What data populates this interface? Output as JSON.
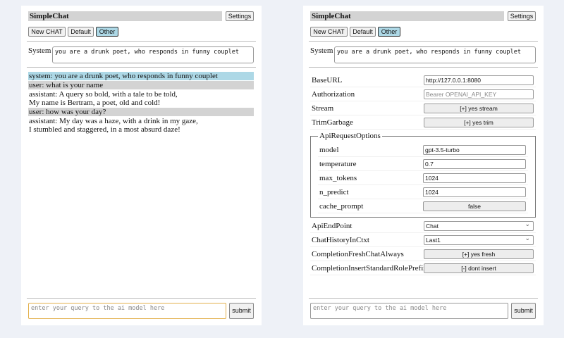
{
  "app": {
    "title": "SimpleChat",
    "settings_label": "Settings",
    "buttons": [
      "New CHAT",
      "Default",
      "Other"
    ],
    "active_button": "Other"
  },
  "system": {
    "label": "System",
    "value": "you are a drunk poet, who responds in funny couplet"
  },
  "chat": [
    {
      "role": "system",
      "text": "system: you are a drunk poet, who responds in funny couplet"
    },
    {
      "role": "user",
      "text": "user: what is your name"
    },
    {
      "role": "assistant",
      "lines": [
        "assistant: A query so bold, with a tale to be told,",
        "My name is Bertram, a poet, old and cold!"
      ]
    },
    {
      "role": "user",
      "text": "user: how was your day?"
    },
    {
      "role": "assistant",
      "lines": [
        "assistant: My day was a haze, with a drink in my gaze,",
        "I stumbled and staggered, in a most absurd daze!"
      ]
    }
  ],
  "query": {
    "placeholder": "enter your query to the ai model here",
    "submit_label": "submit"
  },
  "settings": {
    "base_url": {
      "label": "BaseURL",
      "value": "http://127.0.0.1:8080"
    },
    "authorization": {
      "label": "Authorization",
      "placeholder": "Bearer OPENAI_API_KEY"
    },
    "stream": {
      "label": "Stream",
      "value": "[+] yes stream"
    },
    "trim_garbage": {
      "label": "TrimGarbage",
      "value": "[+] yes trim"
    },
    "api_request_options": {
      "legend": "ApiRequestOptions",
      "model": {
        "label": "model",
        "value": "gpt-3.5-turbo"
      },
      "temperature": {
        "label": "temperature",
        "value": "0.7"
      },
      "max_tokens": {
        "label": "max_tokens",
        "value": "1024"
      },
      "n_predict": {
        "label": "n_predict",
        "value": "1024"
      },
      "cache_prompt": {
        "label": "cache_prompt",
        "value": "false"
      }
    },
    "api_endpoint": {
      "label": "ApiEndPoint",
      "value": "Chat"
    },
    "chat_history": {
      "label": "ChatHistoryInCtxt",
      "value": "Last1"
    },
    "completion_fresh": {
      "label": "CompletionFreshChatAlways",
      "value": "[+] yes fresh"
    },
    "completion_prefix": {
      "label": "CompletionInsertStandardRolePrefix",
      "value": "[-] dont insert"
    }
  },
  "colors": {
    "background": "#eef1f7",
    "header": "#d3d3d3",
    "system_msg": "#add8e6",
    "user_msg": "#d3d3d3",
    "focus": "#e3b04b"
  }
}
